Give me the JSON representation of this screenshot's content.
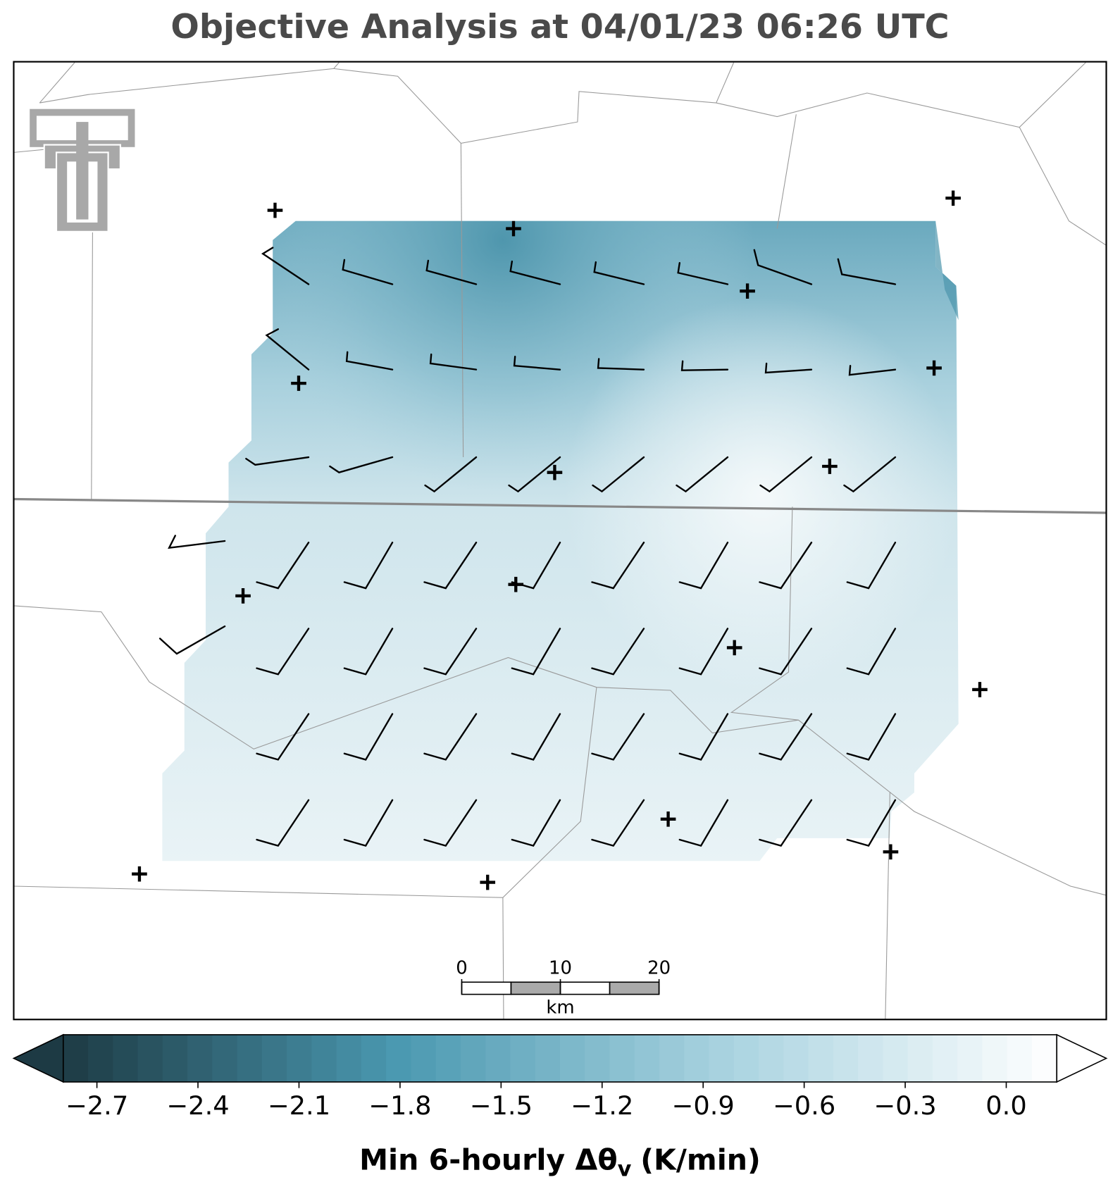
{
  "title": "Objective Analysis at 04/01/23 06:26 UTC",
  "colorbar": {
    "label_main": "Min 6-hourly Δθ",
    "label_subscript": "v",
    "label_suffix": "(K/min)",
    "clim": [
      -2.8,
      0.15
    ],
    "extend": "both",
    "colormap": [
      "#1d3a44",
      "#4a98b0",
      "#a9d3e0",
      "#ffffff"
    ],
    "ticks": [
      {
        "value": -2.7,
        "label": "−2.7"
      },
      {
        "value": -2.4,
        "label": "−2.4"
      },
      {
        "value": -2.1,
        "label": "−2.1"
      },
      {
        "value": -1.8,
        "label": "−1.8"
      },
      {
        "value": -1.5,
        "label": "−1.5"
      },
      {
        "value": -1.2,
        "label": "−1.2"
      },
      {
        "value": -0.9,
        "label": "−0.9"
      },
      {
        "value": -0.6,
        "label": "−0.6"
      },
      {
        "value": -0.3,
        "label": "−0.3"
      },
      {
        "value": 0,
        "label": "0.0"
      }
    ]
  },
  "scale_bar": {
    "ticks": [
      0,
      10,
      20
    ],
    "unit": "km"
  }
}
